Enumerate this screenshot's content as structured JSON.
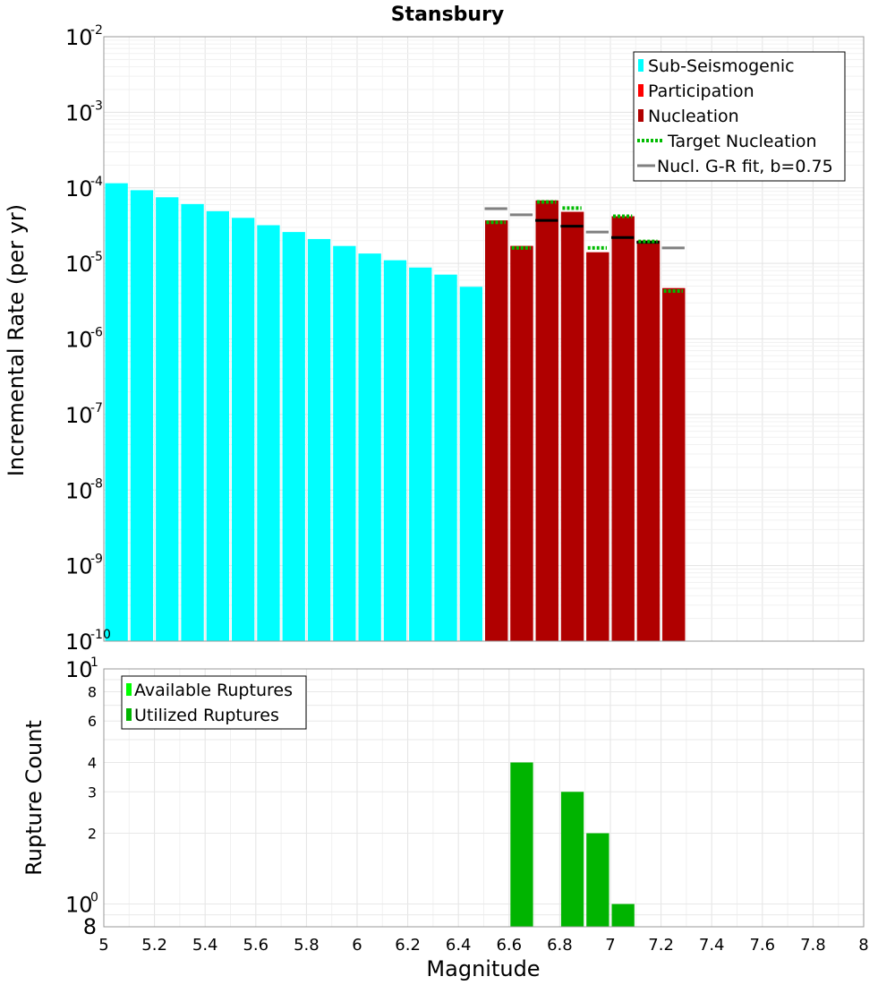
{
  "chart_data": [
    {
      "type": "bar",
      "title": "Stansbury",
      "xlabel": "",
      "ylabel": "Incremental Rate (per yr)",
      "yscale": "log",
      "ylim": [
        1e-10,
        0.01
      ],
      "xlim": [
        5,
        8
      ],
      "grid": true,
      "legend_position": "top-right",
      "colors": {
        "sub_seismogenic": "#00ffff",
        "participation": "#ff0000",
        "nucleation": "#b00000",
        "target_nucleation": "#00bb00",
        "gr_fit": "#808080"
      },
      "y_tick_labels": [
        {
          "base": "10",
          "exp": "-2"
        },
        {
          "base": "10",
          "exp": "-3"
        },
        {
          "base": "10",
          "exp": "-4"
        },
        {
          "base": "10",
          "exp": "-5"
        },
        {
          "base": "10",
          "exp": "-6"
        },
        {
          "base": "10",
          "exp": "-7"
        },
        {
          "base": "10",
          "exp": "-8"
        },
        {
          "base": "10",
          "exp": "-9"
        },
        {
          "base": "10",
          "exp": "-10"
        }
      ],
      "legend": [
        "Sub-Seismogenic",
        "Participation",
        "Nucleation",
        "Target Nucleation",
        "Nucl. G-R fit, b=0.75"
      ],
      "series": [
        {
          "name": "Sub-Seismogenic",
          "x": [
            5.05,
            5.15,
            5.25,
            5.35,
            5.45,
            5.55,
            5.65,
            5.75,
            5.85,
            5.95,
            6.05,
            6.15,
            6.25,
            6.35,
            6.45
          ],
          "values": [
            0.000115,
            9.3e-05,
            7.5e-05,
            6.1e-05,
            4.9e-05,
            4e-05,
            3.2e-05,
            2.6e-05,
            2.1e-05,
            1.7e-05,
            1.35e-05,
            1.1e-05,
            8.8e-06,
            7.1e-06,
            4.9e-06
          ]
        },
        {
          "name": "Participation",
          "x": [
            6.55,
            6.65,
            6.75,
            6.85,
            6.95,
            7.05,
            7.15,
            7.25
          ],
          "values": [
            3.7e-05,
            1.7e-05,
            6.8e-05,
            4.8e-05,
            1.4e-05,
            4.2e-05,
            2e-05,
            4.7e-06
          ]
        },
        {
          "name": "Nucleation",
          "x": [
            6.55,
            6.65,
            6.75,
            6.85,
            6.95,
            7.05,
            7.15,
            7.25
          ],
          "values": [
            3.7e-05,
            1.7e-05,
            6.8e-05,
            4.8e-05,
            1.4e-05,
            4.2e-05,
            2e-05,
            4.7e-06
          ]
        },
        {
          "name": "Target Nucleation",
          "x": [
            6.55,
            6.65,
            6.75,
            6.85,
            6.95,
            7.05,
            7.15,
            7.25
          ],
          "values": [
            3.5e-05,
            1.6e-05,
            6.5e-05,
            5.4e-05,
            1.6e-05,
            4.2e-05,
            1.95e-05,
            4.3e-06
          ]
        },
        {
          "name": "Nucl. G-R fit, b=0.75",
          "x": [
            6.55,
            6.65,
            6.75,
            6.85,
            6.95,
            7.05,
            7.15,
            7.25
          ],
          "values": [
            5.3e-05,
            4.4e-05,
            3.7e-05,
            3.1e-05,
            2.6e-05,
            2.2e-05,
            1.9e-05,
            1.6e-05
          ]
        }
      ]
    },
    {
      "type": "bar",
      "title": "",
      "xlabel": "Magnitude",
      "ylabel": "Rupture Count",
      "yscale": "log",
      "ylim": [
        0.8,
        10
      ],
      "xlim": [
        5,
        8
      ],
      "grid": true,
      "legend_position": "top-left",
      "colors": {
        "available": "#00ff00",
        "utilized": "#00b400"
      },
      "x_tick_labels": [
        "5",
        "5.2",
        "5.4",
        "5.6",
        "5.8",
        "6",
        "6.2",
        "6.4",
        "6.6",
        "6.8",
        "7",
        "7.2",
        "7.4",
        "7.6",
        "7.8",
        "8"
      ],
      "y_tick_labels": [
        {
          "value": 10,
          "base": "10",
          "exp": "1"
        },
        {
          "value": 8,
          "label": "8"
        },
        {
          "value": 6,
          "label": "6"
        },
        {
          "value": 4,
          "label": "4"
        },
        {
          "value": 3,
          "label": "3"
        },
        {
          "value": 2,
          "label": "2"
        },
        {
          "value": 1,
          "base": "10",
          "exp": "0"
        },
        {
          "value": 0.8,
          "label": "8"
        }
      ],
      "legend": [
        "Available Ruptures",
        "Utilized Ruptures"
      ],
      "series": [
        {
          "name": "Available Ruptures",
          "x": [
            6.65,
            6.85,
            6.95,
            7.05
          ],
          "values": [
            4,
            3,
            2,
            1
          ]
        },
        {
          "name": "Utilized Ruptures",
          "x": [
            6.65,
            6.85,
            6.95,
            7.05
          ],
          "values": [
            4,
            3,
            2,
            1
          ]
        }
      ]
    }
  ]
}
